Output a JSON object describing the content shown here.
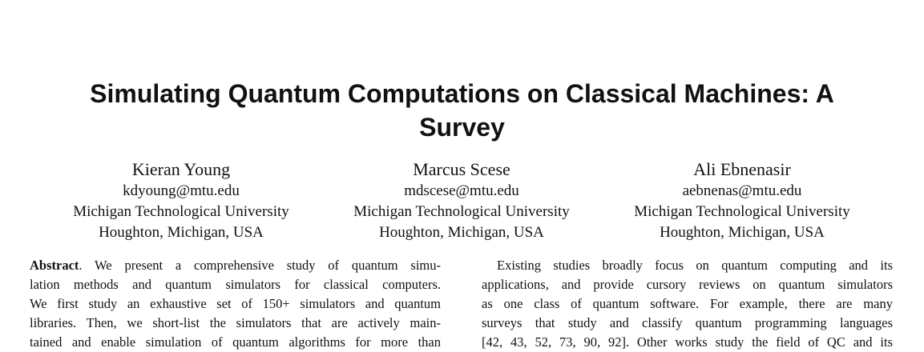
{
  "title": {
    "line1": "Simulating Quantum Computations on Classical Machines: A",
    "line2": "Survey"
  },
  "authors": [
    {
      "name": "Kieran Young",
      "email": "kdyoung@mtu.edu",
      "affiliation": "Michigan Technological University",
      "location": "Houghton, Michigan, USA"
    },
    {
      "name": "Marcus Scese",
      "email": "mdscese@mtu.edu",
      "affiliation": "Michigan Technological University",
      "location": "Houghton, Michigan, USA"
    },
    {
      "name": "Ali Ebnenasir",
      "email": "aebnenas@mtu.edu",
      "affiliation": "Michigan Technological University",
      "location": "Houghton, Michigan, USA"
    }
  ],
  "abstract": {
    "label": "Abstract",
    "lines": [
      ". We present a comprehensive study of quantum simu-",
      "lation methods and quantum simulators for classical computers.",
      "We first study an exhaustive set of 150+ simulators and quantum",
      "libraries. Then, we short-list the simulators that are actively main-",
      "tained and enable simulation of quantum algorithms for more than"
    ]
  },
  "right_column": {
    "lines": [
      "Existing studies broadly focus on quantum computing and its",
      "applications, and provide cursory reviews on quantum simulators",
      "as one class of quantum software. For example, there are many",
      "surveys that study and classify quantum programming languages",
      "[42, 43, 52, 73, 90, 92]. Other works study the field of QC and its"
    ]
  }
}
